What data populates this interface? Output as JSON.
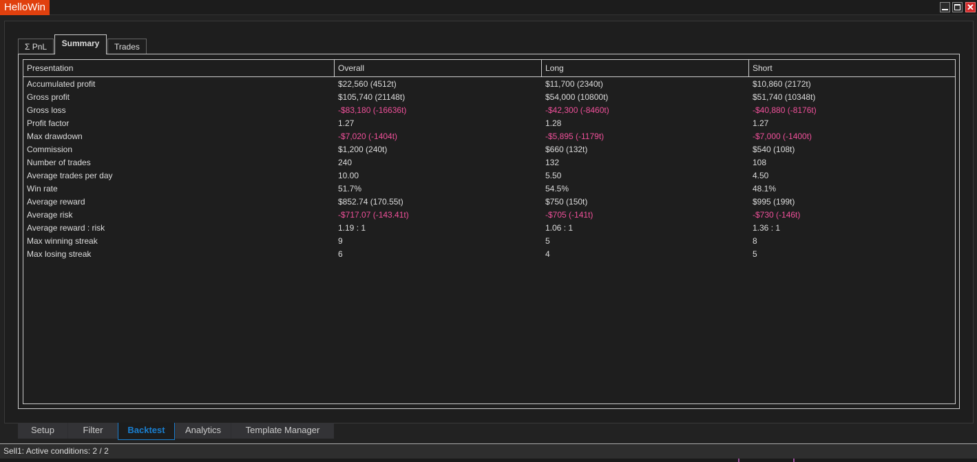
{
  "window": {
    "title": "HelloWin"
  },
  "tabs": [
    {
      "label": "Σ PnL"
    },
    {
      "label": "Summary"
    },
    {
      "label": "Trades"
    }
  ],
  "table": {
    "headers": [
      "Presentation",
      "Overall",
      "Long",
      "Short"
    ],
    "rows": [
      {
        "label": "Accumulated profit",
        "values": [
          "$22,560 (4512t)",
          "$11,700 (2340t)",
          "$10,860 (2172t)"
        ],
        "negative": false
      },
      {
        "label": "Gross profit",
        "values": [
          "$105,740 (21148t)",
          "$54,000 (10800t)",
          "$51,740 (10348t)"
        ],
        "negative": false
      },
      {
        "label": "Gross loss",
        "values": [
          "-$83,180 (-16636t)",
          "-$42,300 (-8460t)",
          "-$40,880 (-8176t)"
        ],
        "negative": true
      },
      {
        "label": "Profit factor",
        "values": [
          "1.27",
          "1.28",
          "1.27"
        ],
        "negative": false
      },
      {
        "label": "Max drawdown",
        "values": [
          "-$7,020 (-1404t)",
          "-$5,895 (-1179t)",
          "-$7,000 (-1400t)"
        ],
        "negative": true
      },
      {
        "label": "Commission",
        "values": [
          "$1,200 (240t)",
          "$660 (132t)",
          "$540 (108t)"
        ],
        "negative": false
      },
      {
        "label": "Number of trades",
        "values": [
          "240",
          "132",
          "108"
        ],
        "negative": false
      },
      {
        "label": "Average trades per day",
        "values": [
          "10.00",
          "5.50",
          "4.50"
        ],
        "negative": false
      },
      {
        "label": "Win rate",
        "values": [
          "51.7%",
          "54.5%",
          "48.1%"
        ],
        "negative": false
      },
      {
        "label": "Average reward",
        "values": [
          "$852.74 (170.55t)",
          "$750 (150t)",
          "$995 (199t)"
        ],
        "negative": false
      },
      {
        "label": "Average risk",
        "values": [
          "-$717.07 (-143.41t)",
          "-$705 (-141t)",
          "-$730 (-146t)"
        ],
        "negative": true
      },
      {
        "label": "Average reward : risk",
        "values": [
          "1.19 : 1",
          "1.06 : 1",
          "1.36 : 1"
        ],
        "negative": false
      },
      {
        "label": "Max winning streak",
        "values": [
          "9",
          "5",
          "8"
        ],
        "negative": false
      },
      {
        "label": "Max losing streak",
        "values": [
          "6",
          "4",
          "5"
        ],
        "negative": false
      }
    ]
  },
  "bottom_tabs": [
    {
      "label": "Setup"
    },
    {
      "label": "Filter"
    },
    {
      "label": "Backtest"
    },
    {
      "label": "Analytics"
    },
    {
      "label": "Template Manager"
    }
  ],
  "status": {
    "text": "Sell1: Active conditions: 2 / 2"
  },
  "colors": {
    "negative": "#f0509a",
    "accent": "#1a7fd0",
    "brand": "#e0400e"
  }
}
